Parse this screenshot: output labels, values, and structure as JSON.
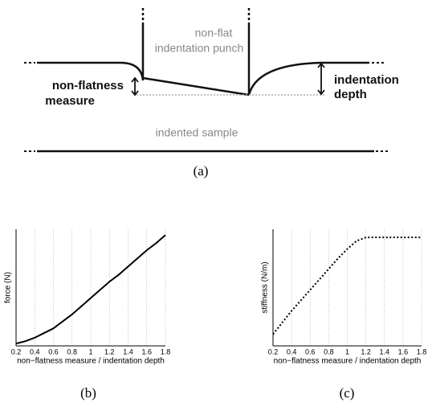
{
  "diagram": {
    "punch_label": [
      "non-flat",
      "indentation punch"
    ],
    "nonflatness_label": [
      "non-flatness",
      "measure"
    ],
    "depth_label": [
      "indentation",
      "depth"
    ],
    "sample_label": "indented sample",
    "caption": "(a)"
  },
  "chart_data": [
    {
      "type": "line",
      "caption": "(b)",
      "ylabel": "force (N)",
      "xlabel": "non−flatness measure / indentation depth",
      "x": [
        0.2,
        0.3,
        0.4,
        0.5,
        0.6,
        0.7,
        0.8,
        0.9,
        1.0,
        1.1,
        1.2,
        1.3,
        1.4,
        1.5,
        1.6,
        1.7,
        1.8
      ],
      "values": [
        0.02,
        0.04,
        0.07,
        0.11,
        0.15,
        0.21,
        0.27,
        0.34,
        0.41,
        0.48,
        0.55,
        0.61,
        0.68,
        0.75,
        0.82,
        0.88,
        0.95
      ],
      "color": "#000000",
      "line_style": "solid",
      "xlim": [
        0.2,
        1.8
      ],
      "xticks": [
        0.2,
        0.4,
        0.6,
        0.8,
        1,
        1.2,
        1.4,
        1.6,
        1.8
      ],
      "ylim": [
        0,
        1
      ],
      "grid": "x"
    },
    {
      "type": "line",
      "caption": "(c)",
      "ylabel": "stiffness (N/m)",
      "xlabel": "non−flatness measure / indentation depth",
      "x": [
        0.2,
        0.3,
        0.4,
        0.5,
        0.6,
        0.7,
        0.8,
        0.9,
        1.0,
        1.1,
        1.2,
        1.3,
        1.4,
        1.5,
        1.6,
        1.7,
        1.8
      ],
      "values": [
        0.1,
        0.2,
        0.3,
        0.39,
        0.48,
        0.57,
        0.66,
        0.75,
        0.83,
        0.9,
        0.93,
        0.93,
        0.93,
        0.93,
        0.93,
        0.93,
        0.93
      ],
      "color": "#000000",
      "line_style": "dotted",
      "xlim": [
        0.2,
        1.8
      ],
      "xticks": [
        0.2,
        0.4,
        0.6,
        0.8,
        1,
        1.2,
        1.4,
        1.6,
        1.8
      ],
      "ylim": [
        0,
        1
      ],
      "grid": "x"
    }
  ]
}
